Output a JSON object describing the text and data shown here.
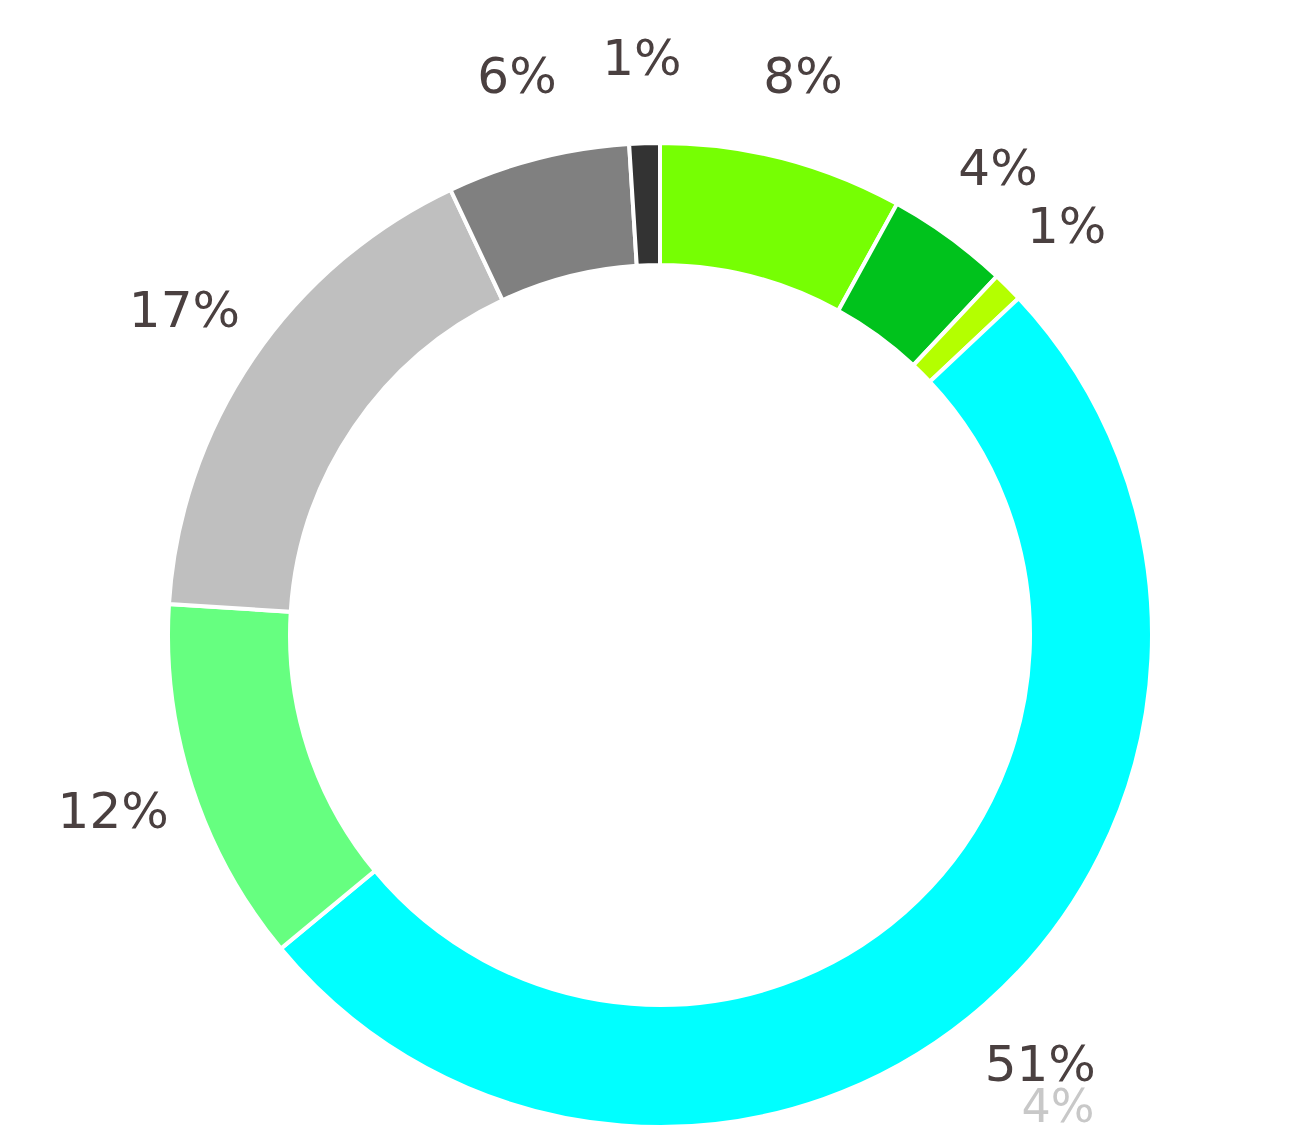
{
  "chart_data": {
    "type": "donut",
    "categories": [
      null,
      null,
      null,
      null,
      null,
      null,
      null,
      null
    ],
    "values": [
      8,
      4,
      1,
      51,
      12,
      17,
      6,
      1
    ],
    "value_labels": [
      "8%",
      "4%",
      "1%",
      "51%",
      "12%",
      "17%",
      "6%",
      "1%"
    ],
    "colors": [
      "#76ff03",
      "#00c21c",
      "#b4ff00",
      "#00ffff",
      "#66ff80",
      "#bfbfbf",
      "#808080",
      "#333333"
    ],
    "annotations": [
      "4%"
    ]
  }
}
